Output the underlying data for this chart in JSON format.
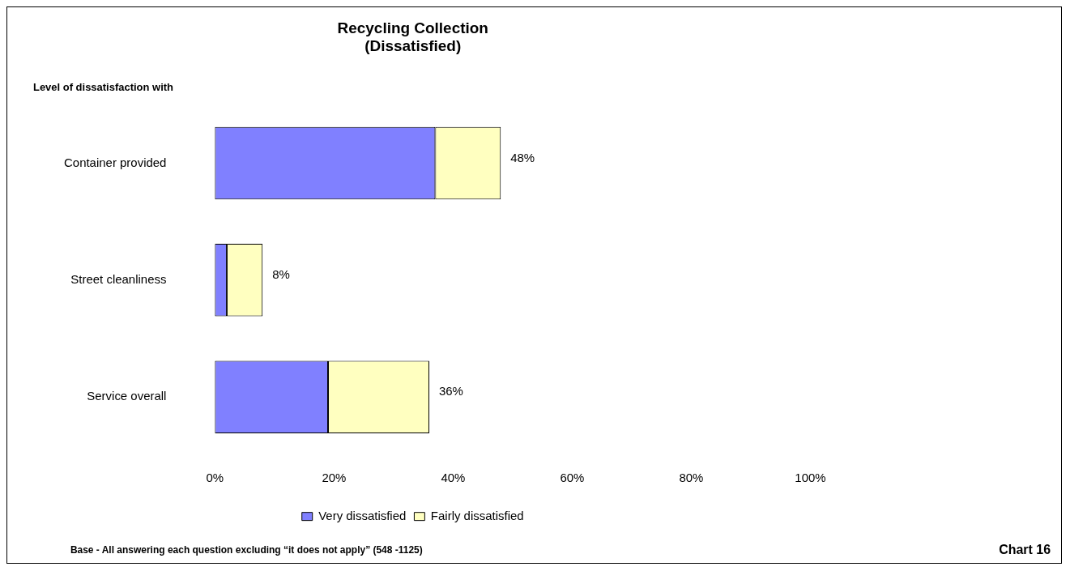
{
  "chart_data": {
    "type": "bar",
    "orientation": "horizontal",
    "stacked": true,
    "title": "Recycling Collection",
    "subtitle": "(Dissatisfied)",
    "ylabel": "Level of dissatisfaction with",
    "categories": [
      "Container provided",
      "Street cleanliness",
      "Service overall"
    ],
    "series": [
      {
        "name": "Very dissatisfied",
        "color": "#8080ff",
        "values": [
          37,
          2,
          19
        ]
      },
      {
        "name": "Fairly dissatisfied",
        "color": "#ffffc0",
        "values": [
          11,
          6,
          17
        ]
      }
    ],
    "totals": [
      "48%",
      "8%",
      "36%"
    ],
    "xlim": [
      0,
      100
    ],
    "xticks": [
      {
        "value": 0,
        "label": "0%"
      },
      {
        "value": 20,
        "label": "20%"
      },
      {
        "value": 40,
        "label": "40%"
      },
      {
        "value": 60,
        "label": "60%"
      },
      {
        "value": 80,
        "label": "80%"
      },
      {
        "value": 100,
        "label": "100%"
      }
    ],
    "grid": false,
    "legend": "bottom",
    "annotations": [
      "Base - All answering each question excluding “it does not apply” (548 -1125)",
      "Chart 16"
    ]
  }
}
